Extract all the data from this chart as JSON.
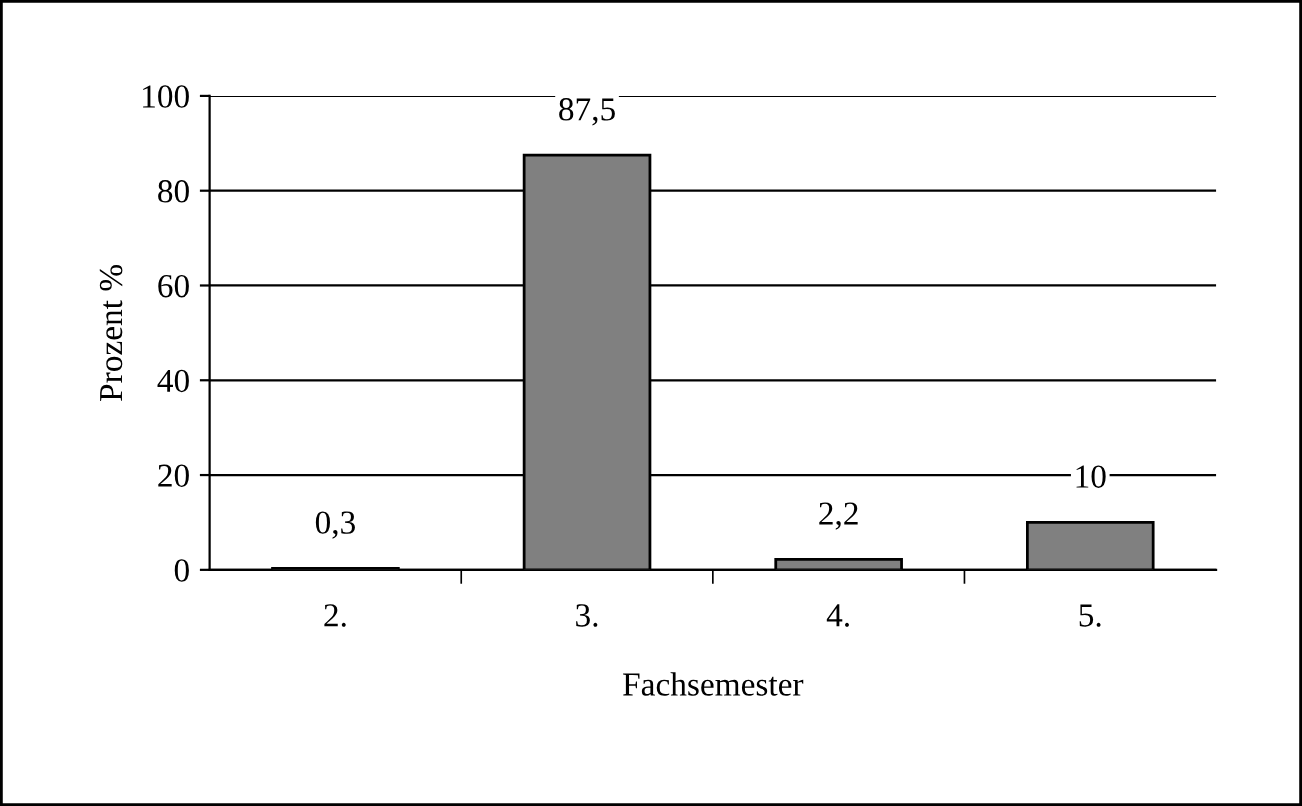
{
  "chart_data": {
    "type": "bar",
    "xlabel": "Fachsemester",
    "ylabel": "Prozent %",
    "categories": [
      "2.",
      "3.",
      "4.",
      "5."
    ],
    "values": [
      0.3,
      87.5,
      2.2,
      10
    ],
    "value_labels": [
      "0,3",
      "87,5",
      "2,2",
      "10"
    ],
    "color": "#808080",
    "ylim": [
      0,
      100
    ],
    "yticks": [
      0,
      20,
      40,
      60,
      80,
      100
    ],
    "grid": "y",
    "legend": false
  }
}
